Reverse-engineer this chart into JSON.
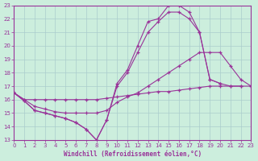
{
  "xlabel": "Windchill (Refroidissement éolien,°C)",
  "bg_color": "#cceedd",
  "grid_color": "#aacccc",
  "line_color": "#993399",
  "xlim": [
    0,
    23
  ],
  "ylim": [
    13,
    23
  ],
  "xticks": [
    0,
    1,
    2,
    3,
    4,
    5,
    6,
    7,
    8,
    9,
    10,
    11,
    12,
    13,
    14,
    15,
    16,
    17,
    18,
    19,
    20,
    21,
    22,
    23
  ],
  "yticks": [
    13,
    14,
    15,
    16,
    17,
    18,
    19,
    20,
    21,
    22,
    23
  ],
  "line1_x": [
    0,
    1,
    2,
    3,
    4,
    5,
    6,
    7,
    8,
    9,
    10,
    11,
    12,
    13,
    14,
    15,
    16,
    17,
    18,
    19,
    20,
    21,
    22
  ],
  "line1_y": [
    16.5,
    15.9,
    15.2,
    15.0,
    14.8,
    14.6,
    14.3,
    13.8,
    13.0,
    14.5,
    17.0,
    18.0,
    19.5,
    21.0,
    21.8,
    22.5,
    22.5,
    22.0,
    21.0,
    17.5,
    17.2,
    17.0,
    17.0
  ],
  "line2_x": [
    0,
    1,
    2,
    3,
    4,
    5,
    6,
    7,
    8,
    9,
    10,
    11,
    12,
    13,
    14,
    15,
    16,
    17,
    18,
    19,
    20
  ],
  "line2_y": [
    16.5,
    15.9,
    15.2,
    15.0,
    14.8,
    14.6,
    14.3,
    13.8,
    13.0,
    14.5,
    17.2,
    18.2,
    20.0,
    21.8,
    22.0,
    23.0,
    23.0,
    22.5,
    21.0,
    17.5,
    17.2
  ],
  "line3_x": [
    0,
    1,
    2,
    3,
    4,
    5,
    6,
    7,
    8,
    9,
    10,
    11,
    12,
    13,
    14,
    15,
    16,
    17,
    18,
    19,
    20,
    21,
    22,
    23
  ],
  "line3_y": [
    16.5,
    16.0,
    15.5,
    15.3,
    15.1,
    15.0,
    15.0,
    15.0,
    15.0,
    15.2,
    15.8,
    16.2,
    16.5,
    17.0,
    17.5,
    18.0,
    18.5,
    19.0,
    19.5,
    19.5,
    19.5,
    18.5,
    17.5,
    17.0
  ],
  "line4_x": [
    0,
    1,
    2,
    3,
    4,
    5,
    6,
    7,
    8,
    9,
    10,
    11,
    12,
    13,
    14,
    15,
    16,
    17,
    18,
    19,
    20,
    21,
    22,
    23
  ],
  "line4_y": [
    16.5,
    16.0,
    16.0,
    16.0,
    16.0,
    16.0,
    16.0,
    16.0,
    16.0,
    16.1,
    16.2,
    16.3,
    16.4,
    16.5,
    16.6,
    16.6,
    16.7,
    16.8,
    16.9,
    17.0,
    17.0,
    17.0,
    17.0,
    17.0
  ]
}
